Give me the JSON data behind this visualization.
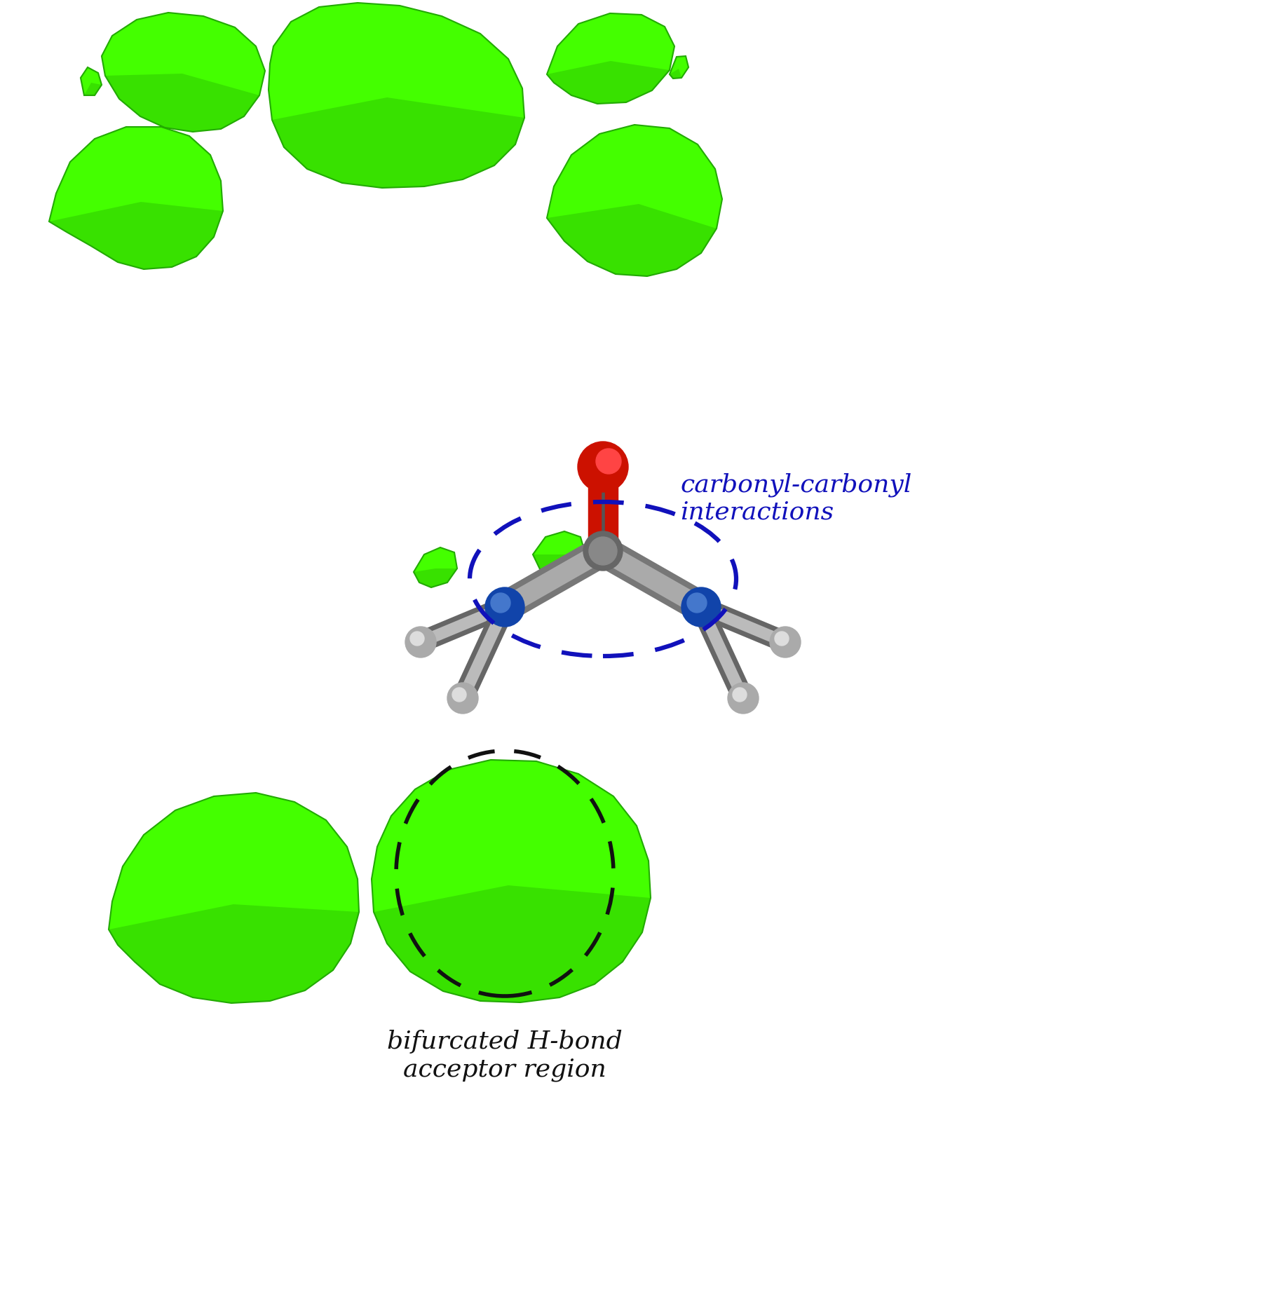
{
  "background_color": "#ffffff",
  "green_color": "#44ff00",
  "green_mid": "#33dd00",
  "green_dark": "#22aa00",
  "blue_text": "#1111bb",
  "black_text": "#111111",
  "annotation_top": {
    "text": "carbonyl-carbonyl\ninteractions",
    "color": "#1111bb",
    "fontsize": 26
  },
  "annotation_bottom": {
    "text": "bifurcated H-bond\nacceptor region",
    "color": "#111111",
    "fontsize": 26
  }
}
